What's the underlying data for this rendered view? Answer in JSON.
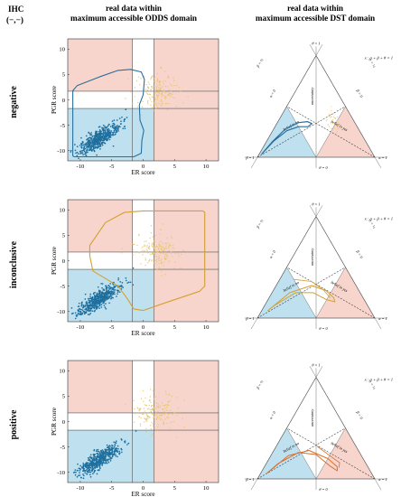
{
  "header": {
    "ihc_label_line1": "IHC",
    "ihc_label_line2": "(−,−)",
    "col1_line1": "real data within",
    "col1_line2": "maximum accessible ODDS domain",
    "col2_line1": "real data within",
    "col2_line2": "maximum accessible DST domain"
  },
  "rows": [
    {
      "label": "negative",
      "boundary_color": "#2a6f9c"
    },
    {
      "label": "inconclusive",
      "boundary_color": "#d4a030"
    },
    {
      "label": "positive",
      "boundary_color": "#d8702e"
    }
  ],
  "scatter_axes": {
    "xlabel": "ER score",
    "ylabel": "PGR score",
    "xticks": [
      "-10",
      "-5",
      "0",
      "5",
      "10"
    ],
    "yticks": [
      "10",
      "5",
      "0",
      "-5",
      "-10"
    ],
    "xlim": [
      -12,
      12
    ],
    "ylim": [
      -12,
      12
    ],
    "thresholds": [
      -1.7,
      1.7
    ]
  },
  "ternary": {
    "equation": "x : α + β + θ = 1",
    "theta_top": "θ = 1",
    "theta_bottom": "θ = 0",
    "beta_left": "β = 1",
    "alpha_right": "α = 1",
    "alpha_zero": "α = 0",
    "beta_zero": "β = 0",
    "beta_half": "β = ½",
    "alpha_half": "α = ½",
    "uncertainty": "uncertainty",
    "belief_in_no": "belief in no",
    "belief_in_yes": "belief in yes"
  },
  "colors": {
    "pink_region": "#f7d5cc",
    "blue_region": "#bfe0ee",
    "blue_dots": "#1f6f9e",
    "yellow_dots": "#e6c46a",
    "grid_line": "#555555"
  }
}
